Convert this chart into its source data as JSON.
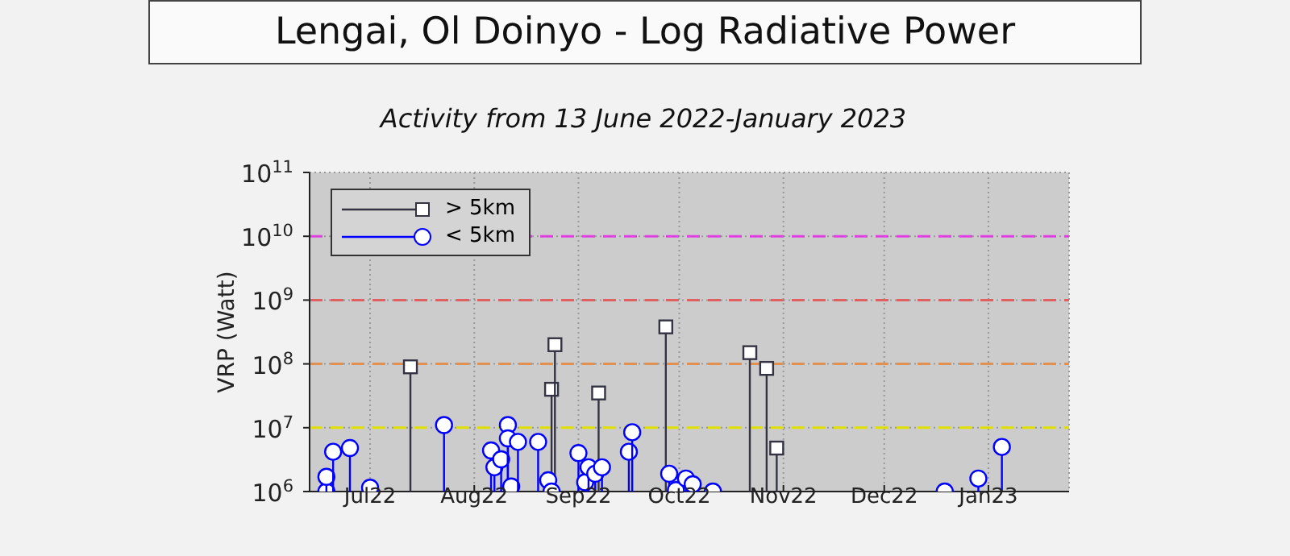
{
  "chart_data": {
    "type": "lollipop",
    "title": "Lengai, Ol Doinyo - Log Radiative Power",
    "subtitle": "Activity from 13 June 2022-January 2023",
    "ylabel": "VRP (Watt)",
    "log": "y",
    "grid": true,
    "legend": "top left",
    "xlim": [
      "2022-06-13",
      "2023-01-25"
    ],
    "xticks": [
      {
        "value": "2022-07-01",
        "label": "Jul22"
      },
      {
        "value": "2022-08-01",
        "label": "Aug22"
      },
      {
        "value": "2022-09-01",
        "label": "Sep22"
      },
      {
        "value": "2022-10-01",
        "label": "Oct22"
      },
      {
        "value": "2022-11-01",
        "label": "Nov22"
      },
      {
        "value": "2022-12-01",
        "label": "Dec22"
      },
      {
        "value": "2023-01-01",
        "label": "Jan23"
      }
    ],
    "ylim": [
      1000000,
      100000000000
    ],
    "yticks": [
      {
        "value": 1000000,
        "label": "10$^{6}$"
      },
      {
        "value": 10000000,
        "label": "10$^{7}$"
      },
      {
        "value": 100000000,
        "label": "10$^{8}$"
      },
      {
        "value": 1000000000,
        "label": "10$^{9}$"
      },
      {
        "value": 10000000000,
        "label": "10$^{10}$"
      },
      {
        "value": 100000000000,
        "label": "10$^{11}$"
      }
    ],
    "ref_lines": [
      {
        "axis": "y",
        "value": 10000000,
        "color": "#e0e000",
        "line_style": "dashed"
      },
      {
        "axis": "y",
        "value": 100000000,
        "color": "#e09050",
        "line_style": "dashed"
      },
      {
        "axis": "y",
        "value": 1000000000,
        "color": "#e06060",
        "line_style": "dashed"
      },
      {
        "axis": "y",
        "value": 10000000000,
        "color": "#e040e0",
        "line_style": "dashed"
      }
    ],
    "series": [
      {
        "name": "> 5km",
        "color": "#333344",
        "marker": "square",
        "x": [
          "2022-07-13",
          "2022-08-24",
          "2022-08-25",
          "2022-09-07",
          "2022-09-27",
          "2022-10-22",
          "2022-10-27",
          "2022-10-30"
        ],
        "values": [
          90000000,
          40000000,
          200000000,
          35000000,
          380000000,
          150000000,
          85000000,
          4800000
        ]
      },
      {
        "name": "< 5km",
        "color": "#0000ff",
        "marker": "circle",
        "x": [
          "2022-06-18",
          "2022-06-18",
          "2022-06-20",
          "2022-06-25",
          "2022-07-01",
          "2022-07-23",
          "2022-08-06",
          "2022-08-07",
          "2022-08-09",
          "2022-08-11",
          "2022-08-11",
          "2022-08-12",
          "2022-08-14",
          "2022-08-20",
          "2022-08-23",
          "2022-08-24",
          "2022-09-01",
          "2022-09-03",
          "2022-09-04",
          "2022-09-06",
          "2022-09-08",
          "2022-09-16",
          "2022-09-17",
          "2022-09-28",
          "2022-09-30",
          "2022-10-03",
          "2022-10-05",
          "2022-10-11",
          "2022-12-19",
          "2022-12-29",
          "2023-01-05"
        ],
        "values": [
          1000000,
          1700000,
          4200000,
          4800000,
          1150000,
          11000000,
          4400000,
          2400000,
          3200000,
          11000000,
          6800000,
          1200000,
          6000000,
          6000000,
          1500000,
          1000000,
          4000000,
          1400000,
          2400000,
          1900000,
          2400000,
          4200000,
          8500000,
          1900000,
          1050000,
          1600000,
          1300000,
          1000000,
          1000000,
          1600000,
          5000000
        ]
      }
    ]
  }
}
